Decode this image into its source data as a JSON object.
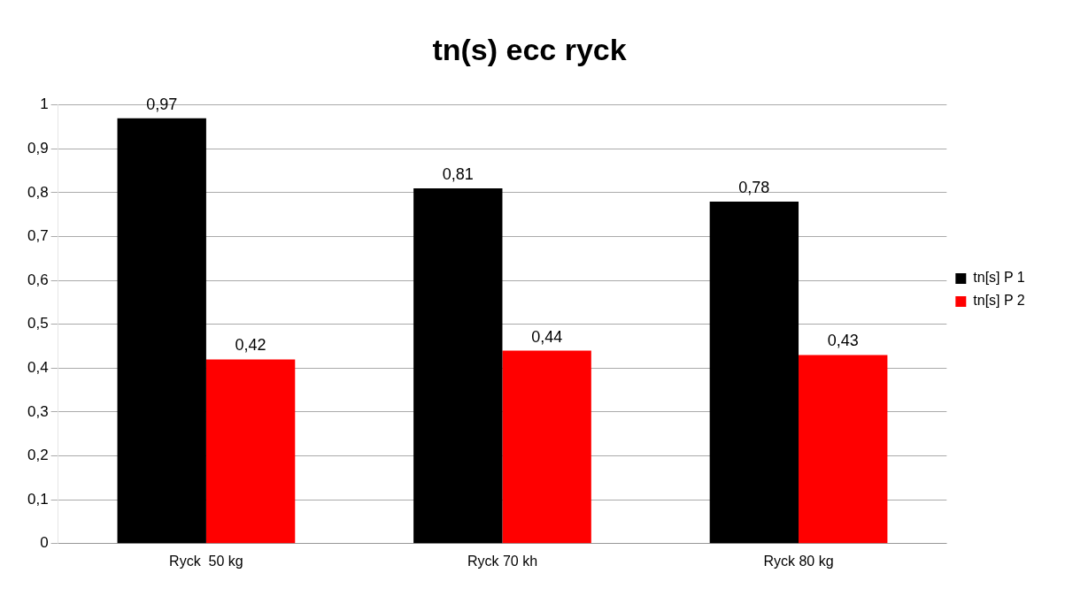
{
  "chart_data": {
    "type": "bar",
    "title": "tn(s) ecc ryck",
    "categories": [
      "Ryck  50 kg",
      "Ryck 70 kh",
      "Ryck 80 kg"
    ],
    "series": [
      {
        "name": "tn[s] P 1",
        "color": "#000000",
        "values": [
          0.97,
          0.81,
          0.78
        ],
        "value_labels": [
          "0,97",
          "0,81",
          "0,78"
        ]
      },
      {
        "name": "tn[s] P 2",
        "color": "#ff0000",
        "values": [
          0.42,
          0.44,
          0.43
        ],
        "value_labels": [
          "0,42",
          "0,44",
          "0,43"
        ]
      }
    ],
    "ylim": [
      0,
      1
    ],
    "yticks": [
      {
        "value": 0,
        "label": "0"
      },
      {
        "value": 0.1,
        "label": "0,1"
      },
      {
        "value": 0.2,
        "label": "0,2"
      },
      {
        "value": 0.3,
        "label": "0,3"
      },
      {
        "value": 0.4,
        "label": "0,4"
      },
      {
        "value": 0.5,
        "label": "0,5"
      },
      {
        "value": 0.6,
        "label": "0,6"
      },
      {
        "value": 0.7,
        "label": "0,7"
      },
      {
        "value": 0.8,
        "label": "0,8"
      },
      {
        "value": 0.9,
        "label": "0,9"
      },
      {
        "value": 1,
        "label": "1"
      }
    ],
    "grid": "y",
    "legend": "right"
  }
}
